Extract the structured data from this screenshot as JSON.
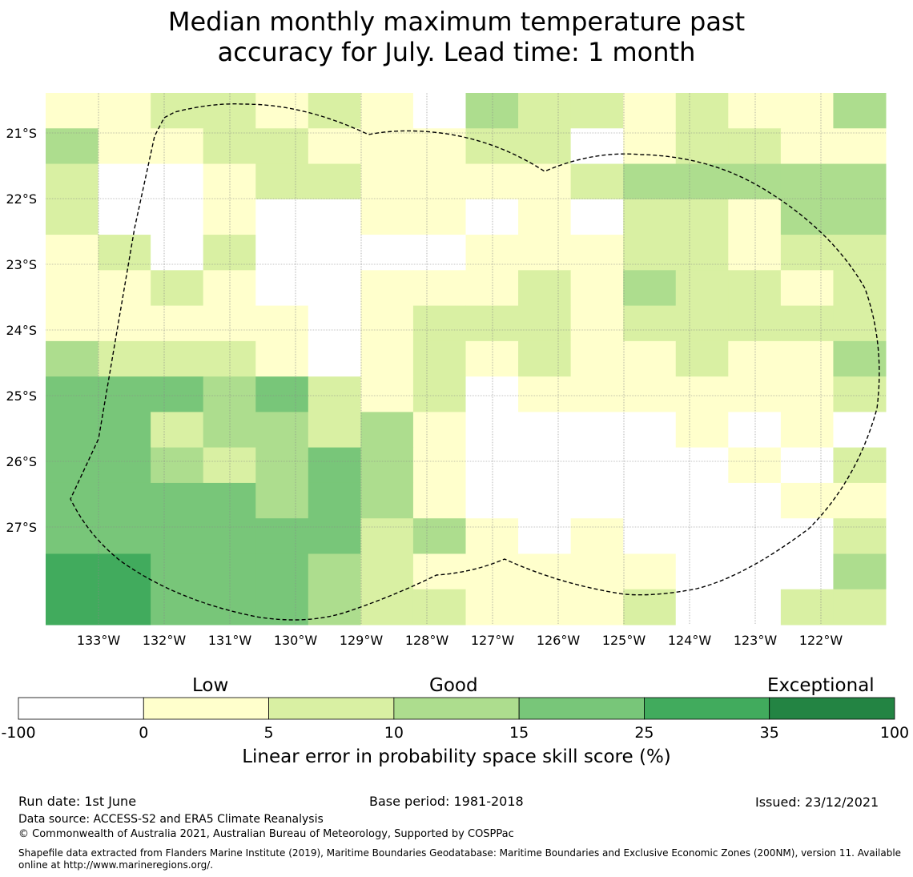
{
  "title_line1": "Median monthly maximum temperature past",
  "title_line2": "accuracy for July. Lead time: 1 month",
  "map": {
    "lon_labels": [
      "133°W",
      "132°W",
      "131°W",
      "130°W",
      "129°W",
      "128°W",
      "127°W",
      "126°W",
      "125°W",
      "124°W",
      "123°W",
      "122°W"
    ],
    "lat_labels": [
      "21°S",
      "22°S",
      "23°S",
      "24°S",
      "25°S",
      "26°S",
      "27°S"
    ],
    "grid_skill_category": [
      [
        1,
        1,
        2,
        2,
        1,
        2,
        1,
        0,
        3,
        2,
        2,
        1,
        2,
        1,
        1,
        3
      ],
      [
        3,
        1,
        1,
        2,
        2,
        1,
        1,
        1,
        2,
        2,
        0,
        1,
        2,
        2,
        1,
        1
      ],
      [
        2,
        0,
        0,
        1,
        2,
        2,
        1,
        1,
        1,
        1,
        2,
        3,
        3,
        3,
        3,
        3
      ],
      [
        2,
        0,
        0,
        1,
        0,
        0,
        1,
        1,
        0,
        1,
        0,
        2,
        2,
        1,
        3,
        3
      ],
      [
        1,
        2,
        0,
        2,
        0,
        0,
        0,
        0,
        1,
        1,
        1,
        2,
        2,
        1,
        2,
        2
      ],
      [
        1,
        1,
        2,
        1,
        0,
        0,
        1,
        1,
        1,
        2,
        1,
        3,
        2,
        2,
        1,
        2
      ],
      [
        1,
        1,
        1,
        1,
        1,
        0,
        1,
        2,
        2,
        2,
        1,
        2,
        2,
        2,
        2,
        2
      ],
      [
        3,
        2,
        2,
        2,
        1,
        0,
        1,
        2,
        1,
        2,
        1,
        1,
        2,
        1,
        1,
        3
      ],
      [
        4,
        4,
        4,
        3,
        4,
        2,
        1,
        2,
        0,
        1,
        1,
        1,
        1,
        1,
        1,
        2
      ],
      [
        4,
        4,
        2,
        3,
        3,
        2,
        3,
        1,
        0,
        0,
        0,
        0,
        1,
        0,
        1,
        0
      ],
      [
        4,
        4,
        3,
        2,
        3,
        4,
        3,
        1,
        0,
        0,
        0,
        0,
        0,
        1,
        0,
        2
      ],
      [
        4,
        4,
        4,
        4,
        3,
        4,
        3,
        1,
        0,
        0,
        0,
        0,
        0,
        0,
        1,
        1
      ],
      [
        4,
        4,
        4,
        4,
        4,
        4,
        2,
        3,
        1,
        0,
        1,
        0,
        0,
        0,
        0,
        2
      ],
      [
        5,
        5,
        4,
        4,
        4,
        3,
        2,
        1,
        1,
        1,
        1,
        1,
        0,
        0,
        0,
        3
      ],
      [
        5,
        5,
        4,
        4,
        4,
        3,
        2,
        2,
        1,
        1,
        1,
        2,
        0,
        0,
        2,
        2
      ]
    ]
  },
  "colorbar": {
    "colors": [
      "#ffffff",
      "#ffffcc",
      "#d9f0a3",
      "#addd8e",
      "#78c679",
      "#41ab5d",
      "#238443"
    ],
    "ticks": [
      "-100",
      "0",
      "5",
      "10",
      "15",
      "25",
      "35",
      "100"
    ],
    "category_low": "Low",
    "category_good": "Good",
    "category_exceptional": "Exceptional",
    "caption": "Linear error in probability space skill score (%)"
  },
  "footer": {
    "run_date": "Run date: 1st June",
    "base_period": "Base period: 1981-2018",
    "issued": "Issued: 23/12/2021",
    "data_source": "Data source: ACCESS-S2 and ERA5 Climate Reanalysis",
    "copyright": "© Commonwealth of Australia 2021, Australian Bureau of Meteorology, Supported by COSPPac",
    "shapefile_line1": "Shapefile data extracted from Flanders Marine Institute (2019), Maritime Boundaries Geodatabase: Maritime Boundaries and Exclusive Economic Zones (200NM), version 11. Available",
    "shapefile_line2": "online at http://www.marineregions.org/."
  }
}
